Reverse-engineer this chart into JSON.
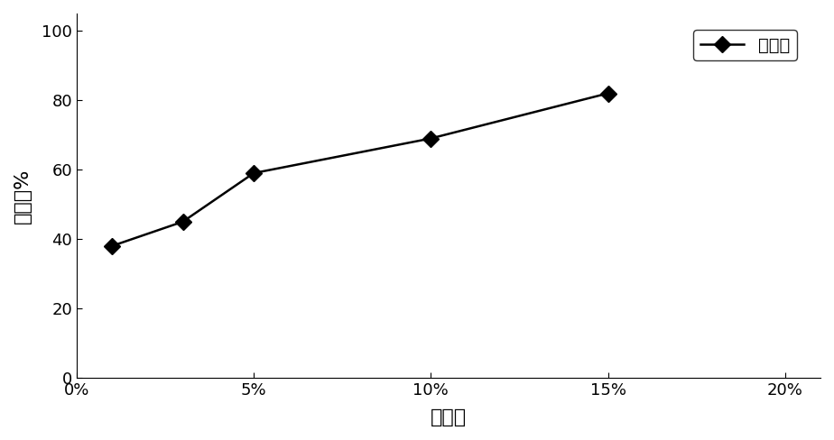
{
  "x_values": [
    0.01,
    0.03,
    0.05,
    0.1,
    0.15
  ],
  "y_values": [
    38,
    45,
    59,
    69,
    82
  ],
  "x_ticks": [
    0.0,
    0.05,
    0.1,
    0.15,
    0.2
  ],
  "x_tick_labels": [
    "0%",
    "5%",
    "10%",
    "15%",
    "20%"
  ],
  "y_ticks": [
    0,
    20,
    40,
    60,
    80,
    100
  ],
  "y_tick_labels": [
    "0",
    "20",
    "40",
    "60",
    "80",
    "100"
  ],
  "xlabel": "接种量",
  "ylabel": "降解率%",
  "legend_label": "降解率",
  "line_color": "#000000",
  "marker": "D",
  "marker_size": 9,
  "marker_facecolor": "#000000",
  "linewidth": 1.8,
  "xlim": [
    0.0,
    0.21
  ],
  "ylim": [
    0,
    105
  ],
  "background_color": "#f5f5f5",
  "legend_fontsize": 14,
  "axis_label_fontsize": 16,
  "tick_fontsize": 13
}
